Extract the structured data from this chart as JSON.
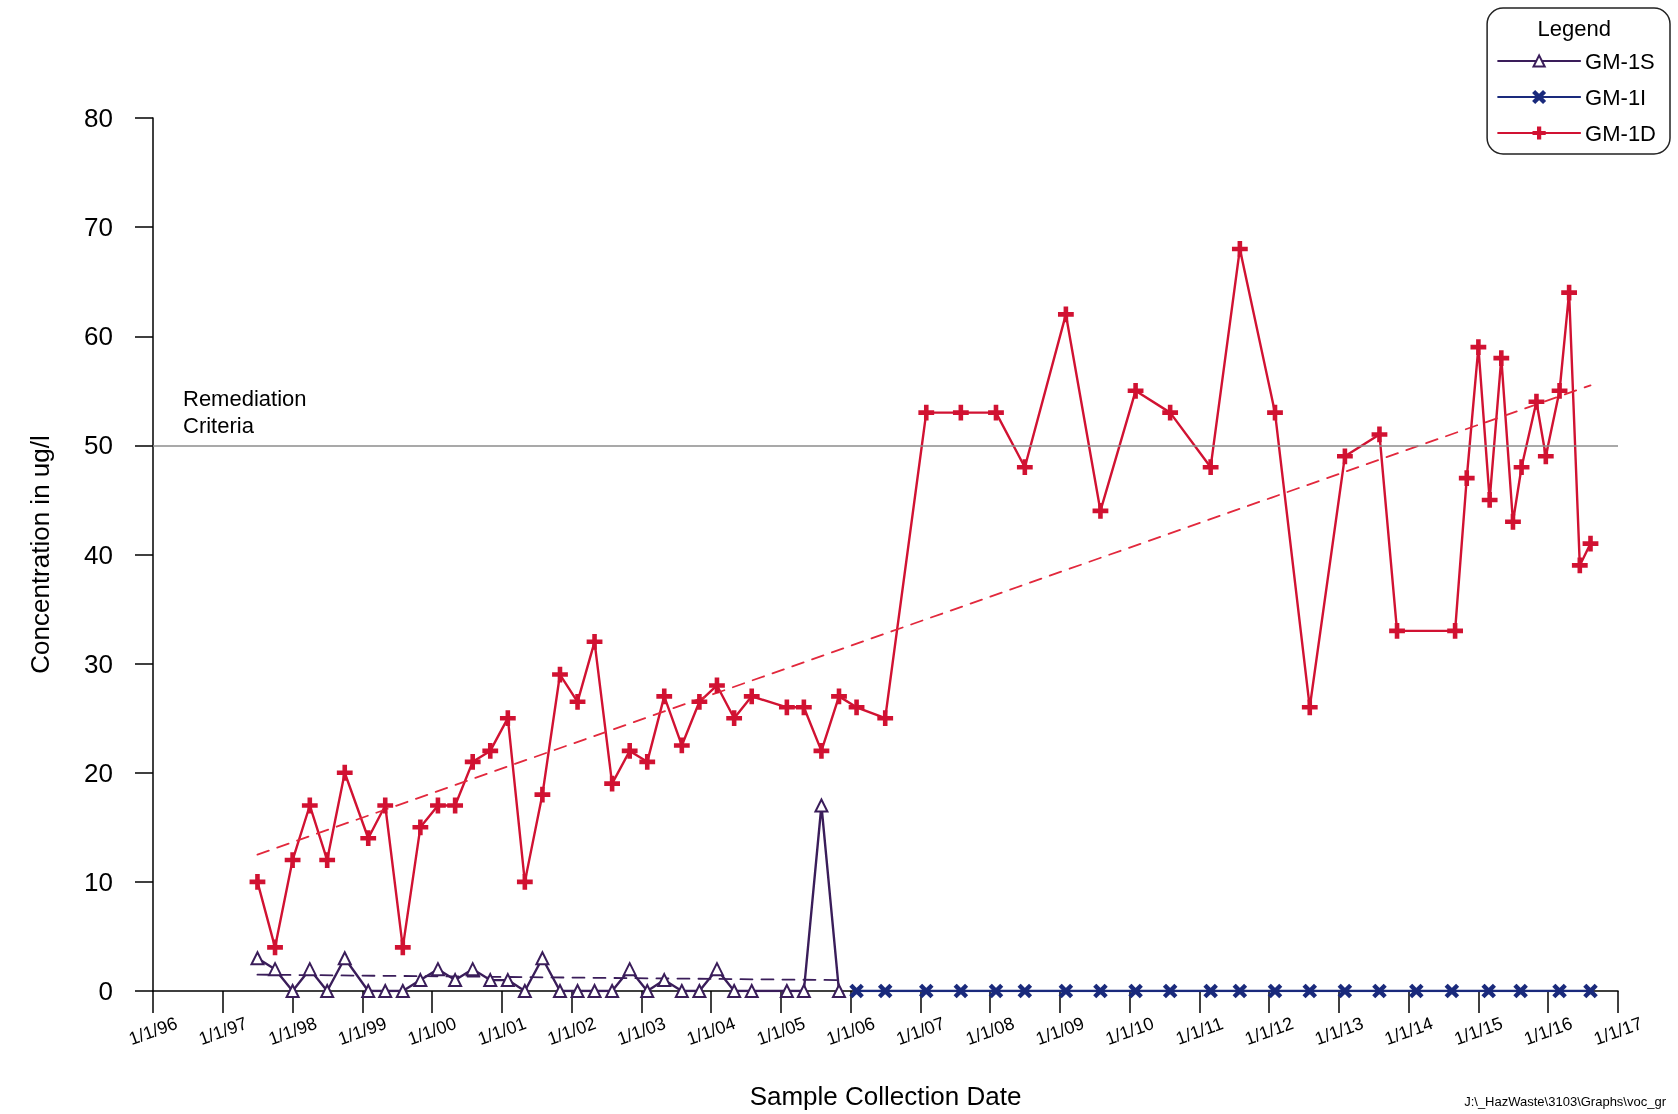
{
  "chart_data": {
    "type": "line",
    "xlabel": "Sample Collection Date",
    "ylabel": "Concentration in ug/l",
    "legend_title": "Legend",
    "legend": "top right",
    "xlim": [
      "1996-01-01",
      "2017-01-01"
    ],
    "xticks": [
      {
        "value": "1996-01-01",
        "label": "1/1/96"
      },
      {
        "value": "1997-01-01",
        "label": "1/1/97"
      },
      {
        "value": "1998-01-01",
        "label": "1/1/98"
      },
      {
        "value": "1999-01-01",
        "label": "1/1/99"
      },
      {
        "value": "2000-01-01",
        "label": "1/1/00"
      },
      {
        "value": "2001-01-01",
        "label": "1/1/01"
      },
      {
        "value": "2002-01-01",
        "label": "1/1/02"
      },
      {
        "value": "2003-01-01",
        "label": "1/1/03"
      },
      {
        "value": "2004-01-01",
        "label": "1/1/04"
      },
      {
        "value": "2005-01-01",
        "label": "1/1/05"
      },
      {
        "value": "2006-01-01",
        "label": "1/1/06"
      },
      {
        "value": "2007-01-01",
        "label": "1/1/07"
      },
      {
        "value": "2008-01-01",
        "label": "1/1/08"
      },
      {
        "value": "2009-01-01",
        "label": "1/1/09"
      },
      {
        "value": "2010-01-01",
        "label": "1/1/10"
      },
      {
        "value": "2011-01-01",
        "label": "1/1/11"
      },
      {
        "value": "2012-01-01",
        "label": "1/1/12"
      },
      {
        "value": "2013-01-01",
        "label": "1/1/13"
      },
      {
        "value": "2014-01-01",
        "label": "1/1/14"
      },
      {
        "value": "2015-01-01",
        "label": "1/1/15"
      },
      {
        "value": "2016-01-01",
        "label": "1/1/16"
      },
      {
        "value": "2017-01-01",
        "label": "1/1/17"
      }
    ],
    "ylim": [
      0,
      80
    ],
    "yticks": [
      0,
      10,
      20,
      30,
      40,
      50,
      60,
      70,
      80
    ],
    "line_style": "solid",
    "series": [
      {
        "name": "GM-1S",
        "color": "#3a1d5a",
        "marker": "triangle",
        "x": [
          "1997-07-01",
          "1997-10-01",
          "1998-01-01",
          "1998-04-01",
          "1998-07-01",
          "1998-10-01",
          "1999-02-01",
          "1999-05-01",
          "1999-08-01",
          "1999-11-01",
          "2000-02-01",
          "2000-05-01",
          "2000-08-01",
          "2000-11-01",
          "2001-02-01",
          "2001-05-01",
          "2001-08-01",
          "2001-11-01",
          "2002-02-01",
          "2002-05-01",
          "2002-08-01",
          "2002-11-01",
          "2003-02-01",
          "2003-05-01",
          "2003-08-01",
          "2003-11-01",
          "2004-02-01",
          "2004-05-01",
          "2004-08-01",
          "2005-02-01",
          "2005-05-01",
          "2005-08-01",
          "2005-11-01"
        ],
        "values": [
          3,
          2,
          0,
          2,
          0,
          3,
          0,
          0,
          0,
          1,
          2,
          1,
          2,
          1,
          1,
          0,
          3,
          0,
          0,
          0,
          0,
          2,
          0,
          1,
          0,
          0,
          2,
          0,
          0,
          0,
          0,
          17,
          0
        ]
      },
      {
        "name": "GM-1I",
        "color": "#1a2a7c",
        "marker": "x",
        "x": [
          "2006-02-01",
          "2006-07-01",
          "2007-02-01",
          "2007-08-01",
          "2008-02-01",
          "2008-07-01",
          "2009-02-01",
          "2009-08-01",
          "2010-02-01",
          "2010-08-01",
          "2011-03-01",
          "2011-08-01",
          "2012-02-01",
          "2012-08-01",
          "2013-02-01",
          "2013-08-01",
          "2014-02-10",
          "2014-08-15",
          "2015-02-24",
          "2015-08-10",
          "2016-03-01",
          "2016-08-10"
        ],
        "values": [
          0,
          0,
          0,
          0,
          0,
          0,
          0,
          0,
          0,
          0,
          0,
          0,
          0,
          0,
          0,
          0,
          0,
          0,
          0,
          0,
          0,
          0
        ]
      },
      {
        "name": "GM-1D",
        "color": "#d11232",
        "marker": "cross",
        "x": [
          "1997-07-01",
          "1997-10-01",
          "1998-01-01",
          "1998-04-01",
          "1998-07-01",
          "1998-10-01",
          "1999-02-01",
          "1999-05-01",
          "1999-08-01",
          "1999-11-01",
          "2000-02-01",
          "2000-05-01",
          "2000-08-01",
          "2000-11-01",
          "2001-02-01",
          "2001-05-01",
          "2001-08-01",
          "2001-11-01",
          "2002-02-01",
          "2002-05-01",
          "2002-08-01",
          "2002-11-01",
          "2003-02-01",
          "2003-05-01",
          "2003-08-01",
          "2003-11-01",
          "2004-02-01",
          "2004-05-01",
          "2004-08-01",
          "2005-02-01",
          "2005-05-01",
          "2005-08-01",
          "2005-11-01",
          "2006-02-01",
          "2006-07-01",
          "2007-02-01",
          "2007-08-01",
          "2008-02-01",
          "2008-07-01",
          "2009-02-01",
          "2009-08-01",
          "2010-02-01",
          "2010-08-01",
          "2011-03-01",
          "2011-08-01",
          "2012-02-01",
          "2012-08-01",
          "2013-02-01",
          "2013-08-01",
          "2013-11-01",
          "2014-09-01",
          "2014-11-01",
          "2015-01-01",
          "2015-03-01",
          "2015-05-01",
          "2015-07-01",
          "2015-08-15",
          "2015-11-01",
          "2015-12-20",
          "2016-03-01",
          "2016-04-20",
          "2016-06-15",
          "2016-08-10"
        ],
        "values": [
          10,
          4,
          12,
          17,
          12,
          20,
          14,
          17,
          4,
          15,
          17,
          17,
          21,
          22,
          25,
          10,
          18,
          29,
          26.5,
          32,
          19,
          22,
          21,
          27,
          22.5,
          26.5,
          28,
          25,
          27,
          26,
          26,
          22,
          27,
          26,
          25,
          53,
          53,
          53,
          48,
          62,
          44,
          55,
          53,
          48,
          68,
          53,
          26,
          49,
          51,
          33,
          33,
          47,
          59,
          45,
          58,
          43,
          48,
          54,
          49,
          55,
          64,
          39,
          41
        ]
      },
      {
        "type": "line",
        "color": "#3a1d5a",
        "marker": "none",
        "line_style": "dashed",
        "x": [
          "1997-07-01",
          "2005-11-01"
        ],
        "values": [
          1.5,
          1
        ]
      },
      {
        "type": "line",
        "color": "#e2283c",
        "marker": "none",
        "line_style": "dashed",
        "x": [
          "1997-07-01",
          "2016-08-10"
        ],
        "values": [
          12.5,
          55.5
        ]
      }
    ],
    "ref_lines": [
      {
        "axis": "y",
        "value": 50,
        "label": "Remediation Criteria",
        "color": "#8c8c8c"
      }
    ],
    "annotations": [
      "J:\\_HazWaste\\3103\\Graphs\\voc_gr"
    ]
  }
}
